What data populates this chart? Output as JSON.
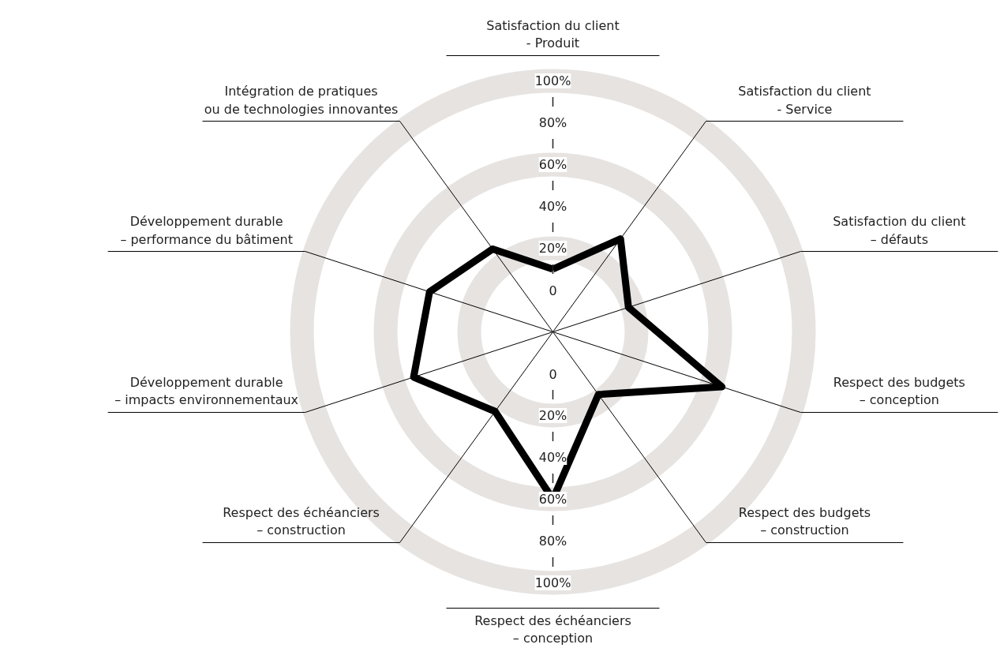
{
  "chart_data": {
    "type": "radar",
    "categories": [
      "Satisfaction du client\n- Produit",
      "Satisfaction du client\n- Service",
      "Satisfaction du client\n– défauts",
      "Respect des budgets\n– conception",
      "Respect des budgets\n– construction",
      "Respect des échéanciers\n– conception",
      "Respect des échéanciers\n– construction",
      "Développement durable\n– impacts environnementaux",
      "Développement durable\n– performance du bâtiment",
      "Intégration de pratiques\nou de technologies innovantes"
    ],
    "series": [
      {
        "color": "#000000",
        "values": [
          10,
          35,
          18,
          65,
          17,
          60,
          27,
          50,
          42,
          29
        ]
      }
    ],
    "ylim": [
      -20,
      100
    ],
    "yticks": [
      {
        "value": 0,
        "label": "0"
      },
      {
        "value": 20,
        "label": "20%"
      },
      {
        "value": 40,
        "label": "40%"
      },
      {
        "value": 60,
        "label": "60%"
      },
      {
        "value": 80,
        "label": "80%"
      },
      {
        "value": 100,
        "label": "100%"
      }
    ],
    "grid": true
  }
}
